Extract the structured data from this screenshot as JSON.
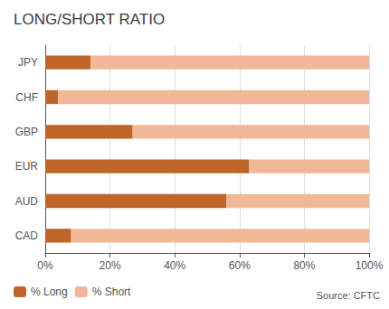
{
  "chart_data": {
    "type": "bar",
    "orientation": "horizontal",
    "stacked": true,
    "title": "LONG/SHORT RATIO",
    "categories": [
      "JPY",
      "CHF",
      "GBP",
      "EUR",
      "AUD",
      "CAD"
    ],
    "series": [
      {
        "name": "% Long",
        "color": "#C0652A",
        "values": [
          14,
          4,
          27,
          63,
          56,
          8
        ]
      },
      {
        "name": "% Short",
        "color": "#F0B896",
        "values": [
          86,
          96,
          73,
          37,
          44,
          92
        ]
      }
    ],
    "xlim": [
      0,
      100
    ],
    "xticks": [
      {
        "value": 0,
        "label": "0%"
      },
      {
        "value": 20,
        "label": "20%"
      },
      {
        "value": 40,
        "label": "40%"
      },
      {
        "value": 60,
        "label": "60%"
      },
      {
        "value": 80,
        "label": "80%"
      },
      {
        "value": 100,
        "label": "100%"
      }
    ],
    "grid": true,
    "legend": "lower left",
    "annotations": [
      "Source: CFTC"
    ]
  }
}
